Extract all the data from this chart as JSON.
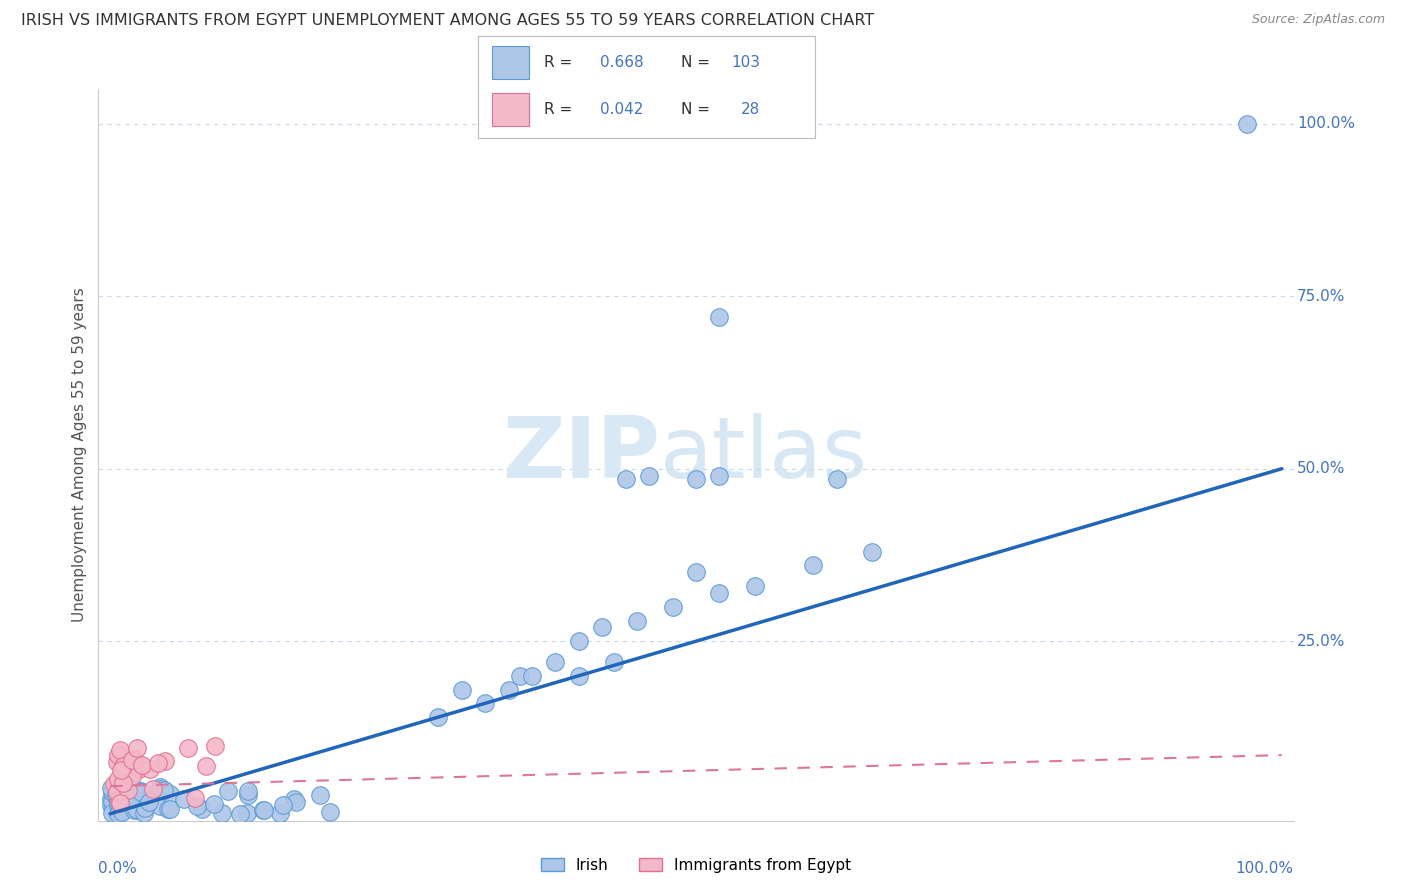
{
  "title": "IRISH VS IMMIGRANTS FROM EGYPT UNEMPLOYMENT AMONG AGES 55 TO 59 YEARS CORRELATION CHART",
  "source": "Source: ZipAtlas.com",
  "ylabel": "Unemployment Among Ages 55 to 59 years",
  "irish_color": "#aec6e8",
  "irish_edge_color": "#5b9bd5",
  "egypt_color": "#f4b8cb",
  "egypt_edge_color": "#e07090",
  "trend_irish_color": "#2266bb",
  "trend_egypt_color": "#dd7799",
  "irish_R": 0.668,
  "irish_N": 103,
  "egypt_R": 0.042,
  "egypt_N": 28,
  "stat_color": "#4472c4",
  "legend_label_irish": "Irish",
  "legend_label_egypt": "Immigrants from Egypt",
  "watermark_color": "#d8e8f4",
  "grid_color": "#c8d8e8",
  "axis_label_color": "#4472c4",
  "title_color": "#333333",
  "source_color": "#888888"
}
